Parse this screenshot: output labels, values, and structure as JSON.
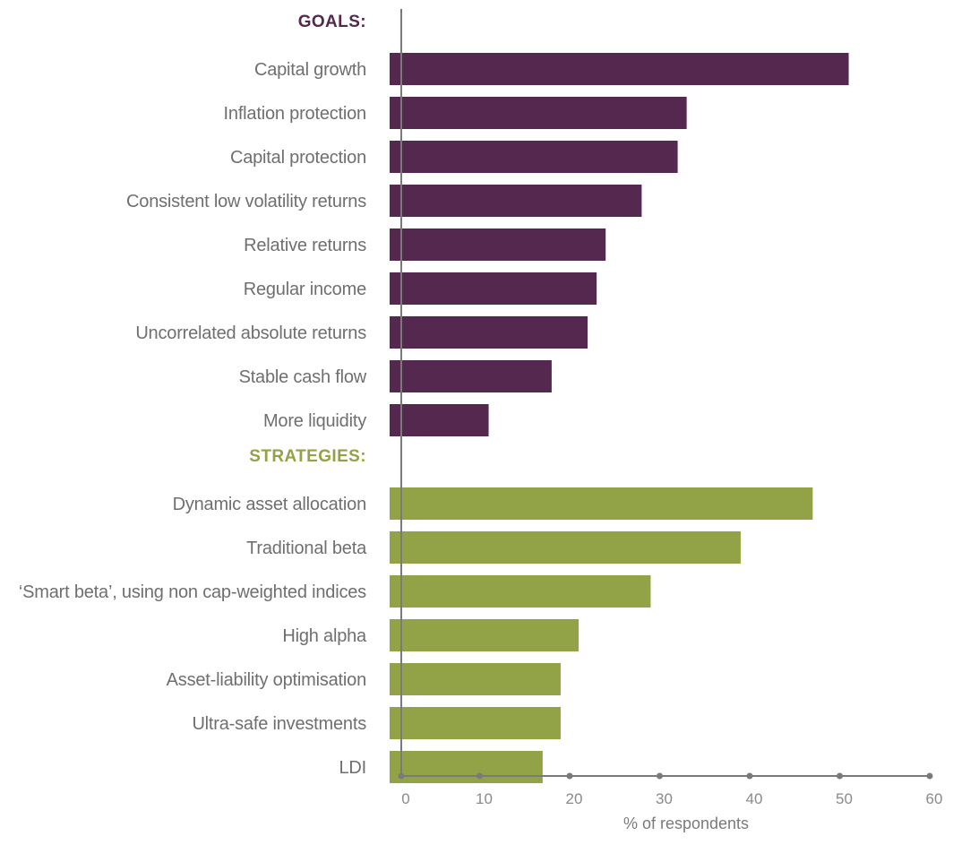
{
  "chart_data": {
    "type": "bar",
    "orientation": "horizontal",
    "xlabel": "% of respondents",
    "xlim": [
      0,
      60
    ],
    "xticks": [
      0,
      10,
      20,
      30,
      40,
      50,
      60
    ],
    "grid": false,
    "groups": [
      {
        "name": "GOALS:",
        "color": "#54284f",
        "categories": [
          "Capital growth",
          "Inflation protection",
          "Capital protection",
          "Consistent low volatility returns",
          "Relative returns",
          "Regular income",
          "Uncorrelated absolute returns",
          "Stable cash flow",
          "More liquidity"
        ],
        "values": [
          51,
          33,
          32,
          28,
          24,
          23,
          22,
          18,
          11
        ]
      },
      {
        "name": "STRATEGIES:",
        "color": "#92a347",
        "categories": [
          "Dynamic asset allocation",
          "Traditional beta",
          "‘Smart beta’, using non cap-weighted indices",
          "High alpha",
          "Asset-liability optimisation",
          "Ultra-safe investments",
          "LDI"
        ],
        "values": [
          47,
          39,
          29,
          21,
          19,
          19,
          17
        ]
      }
    ]
  }
}
